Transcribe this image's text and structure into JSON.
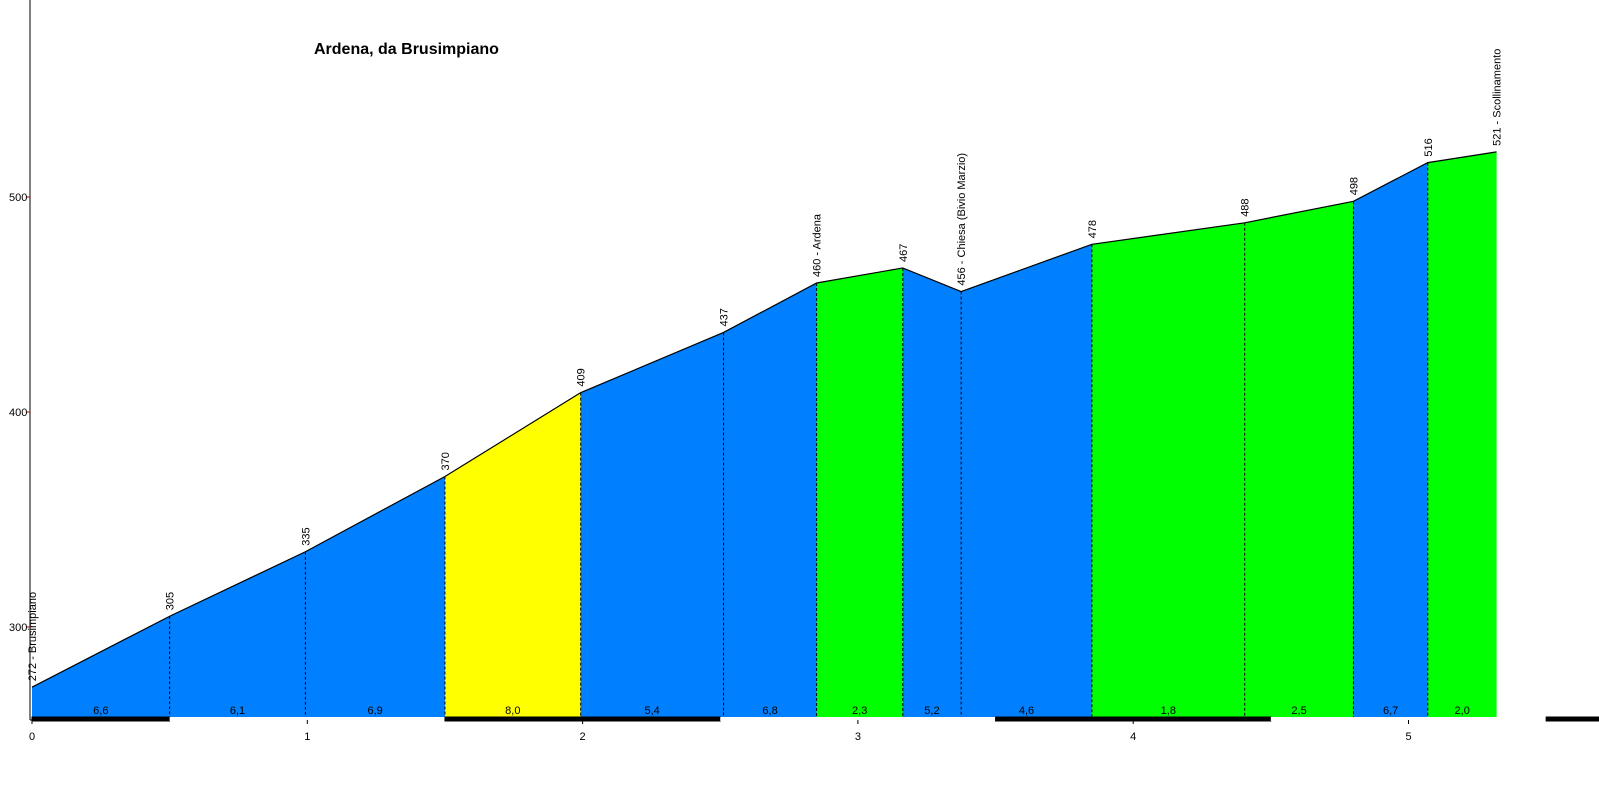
{
  "chart_data": {
    "type": "area",
    "title": "Ardena, da Brusimpiano",
    "xlabel": "",
    "ylabel": "",
    "xlim": [
      0,
      5.7
    ],
    "ylim": [
      258,
      600
    ],
    "y_ticks": [
      300,
      400,
      500
    ],
    "x_ticks": [
      0,
      1,
      2,
      3,
      4,
      5
    ],
    "grid": false,
    "colors": {
      "blue": "#0080ff",
      "yellow": "#ffff00",
      "green": "#00ff00"
    },
    "points": [
      {
        "x": 0.0,
        "y": 272,
        "label": "272 - Brusimpiano"
      },
      {
        "x": 0.5,
        "y": 305,
        "label": "305"
      },
      {
        "x": 0.993,
        "y": 335,
        "label": "335"
      },
      {
        "x": 1.5,
        "y": 370,
        "label": "370"
      },
      {
        "x": 1.993,
        "y": 409,
        "label": "409"
      },
      {
        "x": 2.512,
        "y": 437,
        "label": "437"
      },
      {
        "x": 2.85,
        "y": 460,
        "label": "460 - Ardena"
      },
      {
        "x": 3.163,
        "y": 467,
        "label": "467"
      },
      {
        "x": 3.375,
        "y": 456,
        "label": "456 - Chiesa (Bivio Marzio)"
      },
      {
        "x": 3.85,
        "y": 478,
        "label": "478"
      },
      {
        "x": 4.405,
        "y": 488,
        "label": "488"
      },
      {
        "x": 4.8,
        "y": 498,
        "label": "498"
      },
      {
        "x": 5.07,
        "y": 516,
        "label": "516"
      },
      {
        "x": 5.32,
        "y": 521,
        "label": "521 - Scollinamento"
      }
    ],
    "segments": [
      {
        "grade": "6,6",
        "color": "blue"
      },
      {
        "grade": "6,1",
        "color": "blue"
      },
      {
        "grade": "6,9",
        "color": "blue"
      },
      {
        "grade": "8,0",
        "color": "yellow"
      },
      {
        "grade": "5,4",
        "color": "blue"
      },
      {
        "grade": "6,8",
        "color": "blue"
      },
      {
        "grade": "2,3",
        "color": "green"
      },
      {
        "grade": "5,2",
        "color": "blue"
      },
      {
        "grade": "4,6",
        "color": "blue"
      },
      {
        "grade": "1,8",
        "color": "green"
      },
      {
        "grade": "2,5",
        "color": "green"
      },
      {
        "grade": "6,7",
        "color": "blue"
      },
      {
        "grade": "2,0",
        "color": "green"
      }
    ]
  }
}
